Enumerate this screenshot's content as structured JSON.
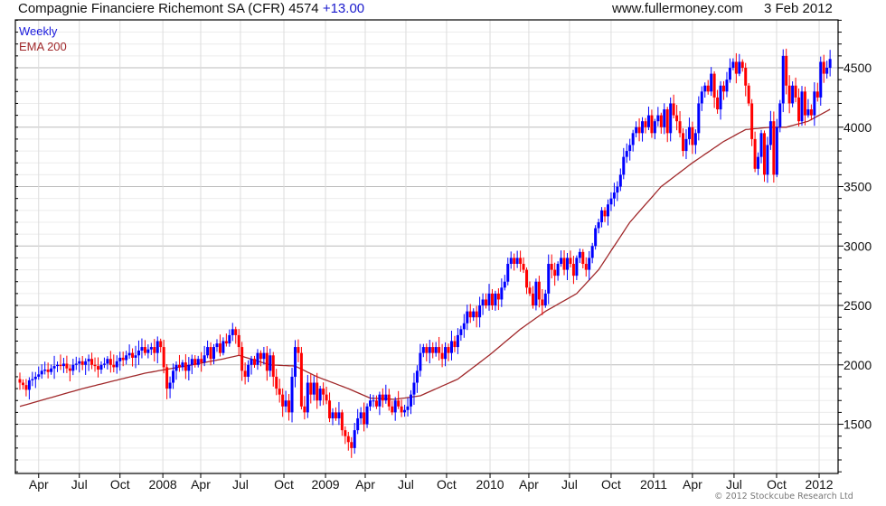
{
  "header": {
    "title": "Compagnie Financiere Richemont SA (CFR) 4574",
    "change": "+13.00",
    "site": "www.fullermoney.com",
    "date": "3 Feb 2012"
  },
  "legend": {
    "series": "Weekly",
    "ema": "EMA 200"
  },
  "footer": {
    "copyright": "© 2012 Stockcube Research Ltd"
  },
  "colors": {
    "up": "#0000ff",
    "down": "#ff0000",
    "ema": "#a0282a",
    "grid": "#dcdcdc",
    "major_grid": "#bbbbbb"
  },
  "chart_data": {
    "type": "candlestick",
    "title": "Compagnie Financiere Richemont SA (CFR)",
    "interval": "weekly",
    "last": 4574,
    "ylim": [
      1086,
      4903
    ],
    "y_ticks": [
      1500,
      2000,
      2500,
      3000,
      3500,
      4000,
      4500
    ],
    "x_ticks": [
      {
        "label": "Apr",
        "week": 6
      },
      {
        "label": "Jul",
        "week": 19
      },
      {
        "label": "Oct",
        "week": 32
      },
      {
        "label": "2008",
        "week": 45.7
      },
      {
        "label": "Apr",
        "week": 57.8
      },
      {
        "label": "Jul",
        "week": 70.5
      },
      {
        "label": "Oct",
        "week": 84.4
      },
      {
        "label": "2009",
        "week": 97.7
      },
      {
        "label": "Apr",
        "week": 110.4
      },
      {
        "label": "Jul",
        "week": 123.4
      },
      {
        "label": "Oct",
        "week": 136.4
      },
      {
        "label": "2010",
        "week": 150.3
      },
      {
        "label": "Apr",
        "week": 162.7
      },
      {
        "label": "Jul",
        "week": 175.7
      },
      {
        "label": "Oct",
        "week": 189
      },
      {
        "label": "2011",
        "week": 202.6
      },
      {
        "label": "Apr",
        "week": 215
      },
      {
        "label": "Jul",
        "week": 228.3
      },
      {
        "label": "Oct",
        "week": 241.9
      },
      {
        "label": "2012",
        "week": 255.5
      }
    ],
    "first_open": 1880,
    "closes": [
      1850,
      1830,
      1790,
      1870,
      1880,
      1900,
      1920,
      1950,
      1960,
      1940,
      1970,
      1990,
      2000,
      1990,
      2010,
      1970,
      1950,
      2000,
      2010,
      2030,
      2000,
      2030,
      2050,
      2000,
      1990,
      1960,
      2000,
      2010,
      2050,
      2000,
      1980,
      2030,
      2060,
      2040,
      2080,
      2100,
      2060,
      2080,
      2120,
      2150,
      2100,
      2130,
      2150,
      2100,
      2200,
      2150,
      1980,
      1800,
      1850,
      1950,
      2000,
      1980,
      2020,
      1950,
      2000,
      2050,
      2000,
      2050,
      2020,
      2080,
      2150,
      2050,
      2150,
      2180,
      2100,
      2200,
      2180,
      2250,
      2300,
      2250,
      2150,
      1950,
      1900,
      2000,
      2050,
      2000,
      2100,
      2050,
      2100,
      1950,
      2080,
      1900,
      1800,
      1750,
      1650,
      1700,
      1600,
      1900,
      2150,
      2100,
      1650,
      1600,
      1850,
      1750,
      1850,
      1700,
      1800,
      1750,
      1700,
      1550,
      1600,
      1550,
      1600,
      1450,
      1400,
      1350,
      1300,
      1450,
      1550,
      1600,
      1500,
      1650,
      1700,
      1700,
      1650,
      1750,
      1700,
      1750,
      1650,
      1600,
      1700,
      1650,
      1600,
      1620,
      1650,
      1750,
      1850,
      1950,
      2100,
      2150,
      2100,
      2150,
      2100,
      2150,
      2100,
      2050,
      2150,
      2100,
      2200,
      2150,
      2250,
      2300,
      2350,
      2450,
      2400,
      2450,
      2400,
      2500,
      2550,
      2500,
      2600,
      2500,
      2600,
      2550,
      2650,
      2700,
      2850,
      2900,
      2850,
      2900,
      2850,
      2800,
      2650,
      2600,
      2500,
      2700,
      2550,
      2500,
      2600,
      2850,
      2800,
      2750,
      2850,
      2900,
      2800,
      2900,
      2850,
      2750,
      2900,
      2950,
      2850,
      2800,
      2900,
      3000,
      3150,
      3200,
      3300,
      3250,
      3350,
      3400,
      3450,
      3500,
      3600,
      3750,
      3800,
      3850,
      3950,
      4000,
      3950,
      4050,
      4000,
      4100,
      3950,
      4050,
      4100,
      4000,
      4150,
      3950,
      4200,
      4100,
      4050,
      3950,
      3800,
      3900,
      4000,
      3850,
      3950,
      4200,
      4300,
      4350,
      4300,
      4450,
      4250,
      4150,
      4350,
      4300,
      4400,
      4500,
      4550,
      4450,
      4550,
      4500,
      4350,
      4200,
      3900,
      3650,
      3750,
      3950,
      3600,
      3850,
      4050,
      3600,
      4000,
      4200,
      4600,
      4350,
      4200,
      4350,
      4250,
      4050,
      4300,
      4100,
      4150,
      4100,
      4300,
      4250,
      4550,
      4450,
      4500,
      4574
    ],
    "ema200": [
      [
        0,
        1650
      ],
      [
        20,
        1800
      ],
      [
        40,
        1930
      ],
      [
        55,
        2000
      ],
      [
        65,
        2050
      ],
      [
        70,
        2080
      ],
      [
        80,
        2000
      ],
      [
        88,
        1990
      ],
      [
        95,
        1900
      ],
      [
        105,
        1800
      ],
      [
        112,
        1720
      ],
      [
        120,
        1710
      ],
      [
        128,
        1740
      ],
      [
        140,
        1880
      ],
      [
        150,
        2080
      ],
      [
        160,
        2300
      ],
      [
        168,
        2450
      ],
      [
        178,
        2600
      ],
      [
        185,
        2800
      ],
      [
        195,
        3200
      ],
      [
        205,
        3500
      ],
      [
        215,
        3700
      ],
      [
        225,
        3880
      ],
      [
        232,
        3980
      ],
      [
        240,
        4000
      ],
      [
        245,
        4000
      ],
      [
        252,
        4050
      ],
      [
        259,
        4150
      ]
    ]
  }
}
